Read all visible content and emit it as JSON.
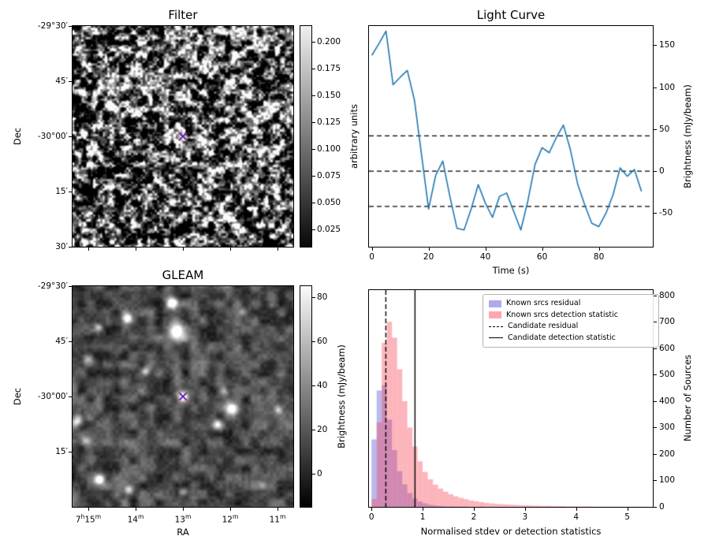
{
  "figure": {
    "background": "#ffffff"
  },
  "chart_data": [
    {
      "id": "filter",
      "type": "heatmap",
      "title": "Filter",
      "xlabel": "",
      "ylabel": "Dec",
      "y_tick_labels": [
        "-29°30′",
        "45′",
        "-30°00′",
        "15′",
        "30′"
      ],
      "colorbar": {
        "label": "arbitrary units",
        "tick_labels": [
          "0.200",
          "0.175",
          "0.150",
          "0.125",
          "0.100",
          "0.075",
          "0.050",
          "0.025"
        ],
        "tick_values": [
          0.2,
          0.175,
          0.15,
          0.125,
          0.1,
          0.075,
          0.05,
          0.025
        ],
        "vmin": 0.009,
        "vmax": 0.215
      },
      "image": {
        "description": "grayscale correlated random-noise field with candidate marker at center",
        "seed": 7,
        "marker": {
          "x_frac": 0.5,
          "y_frac": 0.5,
          "color_back": "#ff1111",
          "color_front": "#2222ee"
        }
      }
    },
    {
      "id": "light_curve",
      "type": "line",
      "title": "Light Curve",
      "xlabel": "Time (s)",
      "ylabel": "Brightness (mJy/beam)",
      "line_color": "#1f77b4",
      "xlim": [
        -1,
        99
      ],
      "ylim": [
        -90,
        173
      ],
      "x_ticks": [
        0,
        20,
        40,
        60,
        80
      ],
      "y_ticks": [
        -50,
        0,
        50,
        100,
        150
      ],
      "dashed_hlines": [
        42,
        0,
        -42
      ],
      "x": [
        0,
        2.5,
        5,
        7.5,
        10,
        12.5,
        15,
        17.5,
        20,
        22.5,
        25,
        27.5,
        30,
        32.5,
        35,
        37.5,
        40,
        42.5,
        45,
        47.5,
        50,
        52.5,
        55,
        57.5,
        60,
        62.5,
        65,
        67.5,
        70,
        72.5,
        75,
        77.5,
        80,
        82.5,
        85,
        87.5,
        90,
        92.5,
        95
      ],
      "y": [
        138,
        152,
        167,
        103,
        112,
        120,
        85,
        20,
        -45,
        -5,
        12,
        -30,
        -68,
        -70,
        -45,
        -16,
        -38,
        -55,
        -30,
        -26,
        -48,
        -70,
        -35,
        8,
        28,
        22,
        40,
        55,
        25,
        -15,
        -40,
        -62,
        -66,
        -50,
        -28,
        4,
        -6,
        2,
        -24
      ]
    },
    {
      "id": "gleam",
      "type": "heatmap",
      "title": "GLEAM",
      "xlabel": "RA",
      "ylabel": "Dec",
      "x_tick_labels": [
        "7^h15^m",
        "14^m",
        "13^m",
        "12^m",
        "11^m"
      ],
      "y_tick_labels": [
        "-29°30′",
        "45′",
        "-30°00′",
        "15′"
      ],
      "colorbar": {
        "label": "Brightness (mJy/beam)",
        "tick_labels": [
          "80",
          "60",
          "40",
          "20",
          "0"
        ],
        "tick_values": [
          80,
          60,
          40,
          20,
          0
        ],
        "vmin": -15,
        "vmax": 85
      },
      "image": {
        "description": "grayscale sky map with bright point sources and candidate marker at center",
        "seed": 12,
        "sources": [
          [
            0.45,
            0.075,
            5,
            1.0
          ],
          [
            0.47,
            0.205,
            8,
            1.0
          ],
          [
            0.25,
            0.145,
            4.5,
            0.75
          ],
          [
            0.115,
            0.185,
            3.5,
            0.5
          ],
          [
            0.07,
            0.33,
            4.5,
            0.55
          ],
          [
            0.33,
            0.385,
            4,
            0.5
          ],
          [
            0.5,
            0.5,
            5.5,
            0.95
          ],
          [
            0.685,
            0.475,
            3.5,
            0.45
          ],
          [
            0.72,
            0.555,
            5.5,
            0.8
          ],
          [
            0.655,
            0.625,
            4.5,
            0.65
          ],
          [
            0.02,
            0.605,
            5,
            0.7
          ],
          [
            0.055,
            0.7,
            4,
            0.5
          ],
          [
            0.12,
            0.875,
            4.5,
            0.85
          ],
          [
            0.255,
            0.925,
            4,
            0.6
          ],
          [
            0.5,
            0.93,
            3.5,
            0.45
          ],
          [
            0.93,
            0.56,
            3.5,
            0.4
          ],
          [
            0.86,
            0.9,
            3.5,
            0.35
          ],
          [
            0.77,
            0.115,
            3,
            0.3
          ]
        ],
        "marker": {
          "x_frac": 0.5,
          "y_frac": 0.5,
          "color_back": "#ff1111",
          "color_front": "#2222ee"
        }
      }
    },
    {
      "id": "histogram",
      "type": "bar",
      "title": "",
      "xlabel": "Normalised stdev or detection statistics",
      "ylabel": "Number of Sources",
      "xlim": [
        -0.05,
        5.5
      ],
      "ylim": [
        0,
        820
      ],
      "x_ticks": [
        0,
        1,
        2,
        3,
        4,
        5
      ],
      "y_ticks": [
        0,
        100,
        200,
        300,
        400,
        500,
        600,
        700,
        800
      ],
      "bin_start": 0,
      "bin_width": 0.1,
      "series": [
        {
          "name": "Known srcs residual",
          "color": "#4646d2",
          "alpha": 0.38,
          "counts": [
            255,
            440,
            460,
            330,
            215,
            135,
            85,
            52,
            32,
            20,
            13,
            8,
            5,
            3,
            2,
            2,
            1,
            1,
            1,
            0,
            0,
            1,
            0,
            0,
            0,
            0,
            0,
            0,
            0,
            0,
            0,
            0,
            0,
            0,
            0,
            0,
            0,
            0,
            0,
            0,
            0,
            0,
            0,
            0,
            0,
            0,
            0,
            0,
            0,
            0,
            0,
            0,
            0,
            0,
            0,
            0
          ]
        },
        {
          "name": "Known srcs detection statistic",
          "color": "#fa3c50",
          "alpha": 0.38,
          "counts": [
            30,
            320,
            620,
            700,
            640,
            520,
            400,
            300,
            228,
            172,
            132,
            104,
            84,
            69,
            57,
            48,
            40,
            34,
            29,
            24,
            21,
            18,
            15,
            13,
            11,
            10,
            9,
            8,
            7,
            6,
            6,
            5,
            5,
            4,
            4,
            3,
            3,
            3,
            2,
            2,
            2,
            2,
            2,
            1,
            1,
            1,
            1,
            1,
            1,
            1,
            1,
            1,
            1,
            1,
            0,
            1
          ]
        }
      ],
      "vlines": [
        {
          "name": "Candidate residual",
          "x": 0.28,
          "style": "dashed",
          "color": "#000000"
        },
        {
          "name": "Candidate detection statistic",
          "x": 0.85,
          "style": "solid",
          "color": "#000000"
        }
      ]
    }
  ]
}
